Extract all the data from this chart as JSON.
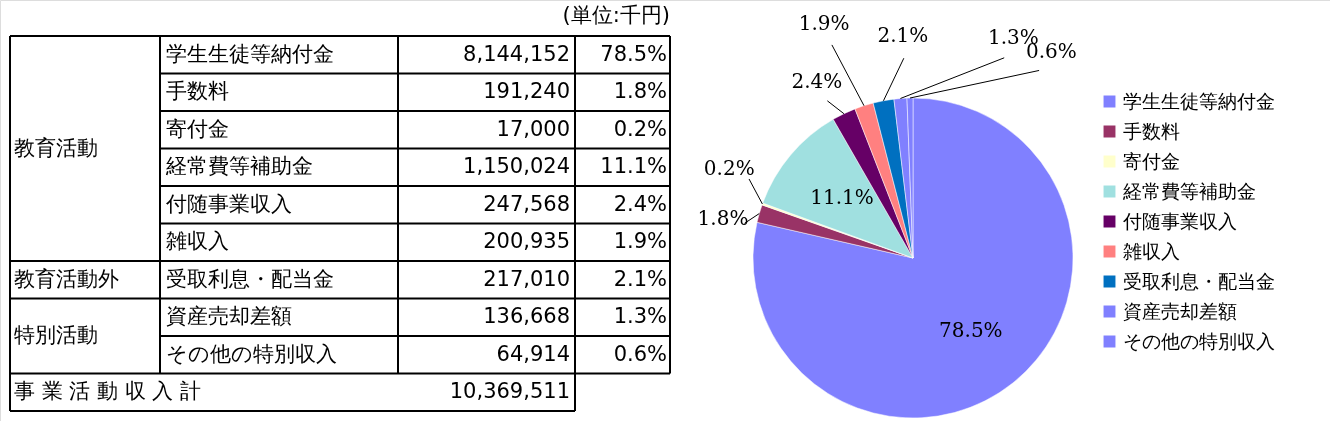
{
  "chart_data": {
    "type": "pie",
    "categories": [
      "学生生徒等納付金",
      "手数料",
      "寄付金",
      "経常費等補助金",
      "付随事業収入",
      "雑収入",
      "受取利息・配当金",
      "資産売却差額",
      "その他の特別収入"
    ],
    "values": [
      78.5,
      1.8,
      0.2,
      11.1,
      2.4,
      1.9,
      2.1,
      1.3,
      0.6
    ],
    "colors": [
      "#8080ff",
      "#993366",
      "#ffffcc",
      "#a0e0e0",
      "#660066",
      "#ff8080",
      "#0070c0",
      "#8080ff",
      "#8080ff"
    ],
    "value_labels": [
      "78.5%",
      "1.8%",
      "0.2%",
      "11.1%",
      "2.4%",
      "1.9%",
      "2.1%",
      "1.3%",
      "0.6%"
    ],
    "legend": "right",
    "annotations": [
      "(単位:千円)",
      "教育活動",
      "教育活動外",
      "特別活動",
      "事 業 活 動 収 入 計",
      "10,369,511",
      "8,144,152",
      "191,240",
      "17,000",
      "1,150,024",
      "247,568",
      "200,935",
      "217,010",
      "136,668",
      "64,914"
    ]
  }
}
